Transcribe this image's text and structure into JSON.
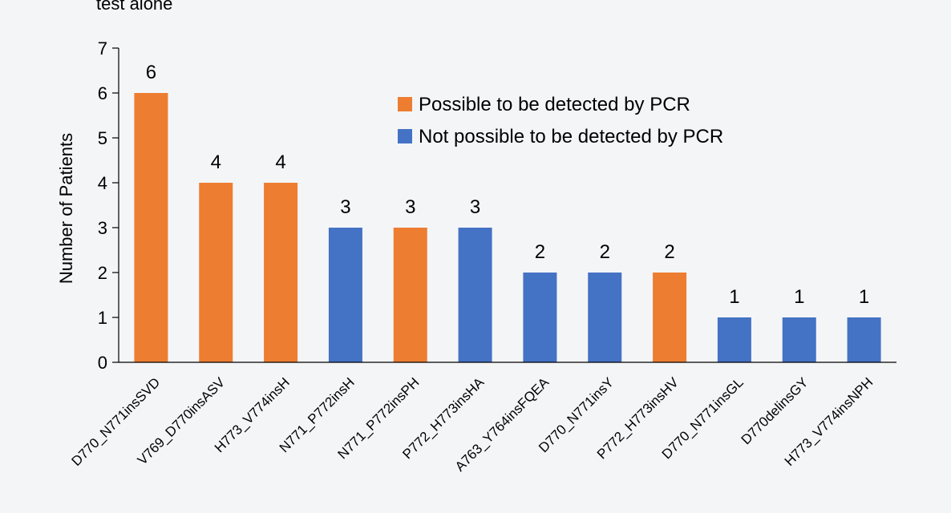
{
  "chart_data": {
    "type": "bar",
    "top_text": "test alone",
    "ylabel": "Number of Patients",
    "xlabel": "",
    "ylim": [
      0,
      7
    ],
    "yticks": [
      0,
      1,
      2,
      3,
      4,
      5,
      6,
      7
    ],
    "grid": false,
    "legend_position": "top-right",
    "colors": {
      "possible": "#ed7d31",
      "not_possible": "#4472c4",
      "axis": "#000000",
      "background": "#f4f5f7"
    },
    "legend": [
      {
        "key": "possible",
        "label": "Possible to be detected by PCR"
      },
      {
        "key": "not_possible",
        "label": "Not possible to be detected by PCR"
      }
    ],
    "categories": [
      "D770_N771insSVD",
      "V769_D770insASV",
      "H773_V774insH",
      "N771_P772insH",
      "N771_P772insPH",
      "P772_H773insHA",
      "A763_Y764insFQEA",
      "D770_N771insY",
      "P772_H773insHV",
      "D770_N771insGL",
      "D770delinsGY",
      "H773_V774insNPH"
    ],
    "values": [
      6,
      4,
      4,
      3,
      3,
      3,
      2,
      2,
      2,
      1,
      1,
      1
    ],
    "detectable": [
      "possible",
      "possible",
      "possible",
      "not_possible",
      "possible",
      "not_possible",
      "not_possible",
      "not_possible",
      "possible",
      "not_possible",
      "not_possible",
      "not_possible"
    ]
  }
}
